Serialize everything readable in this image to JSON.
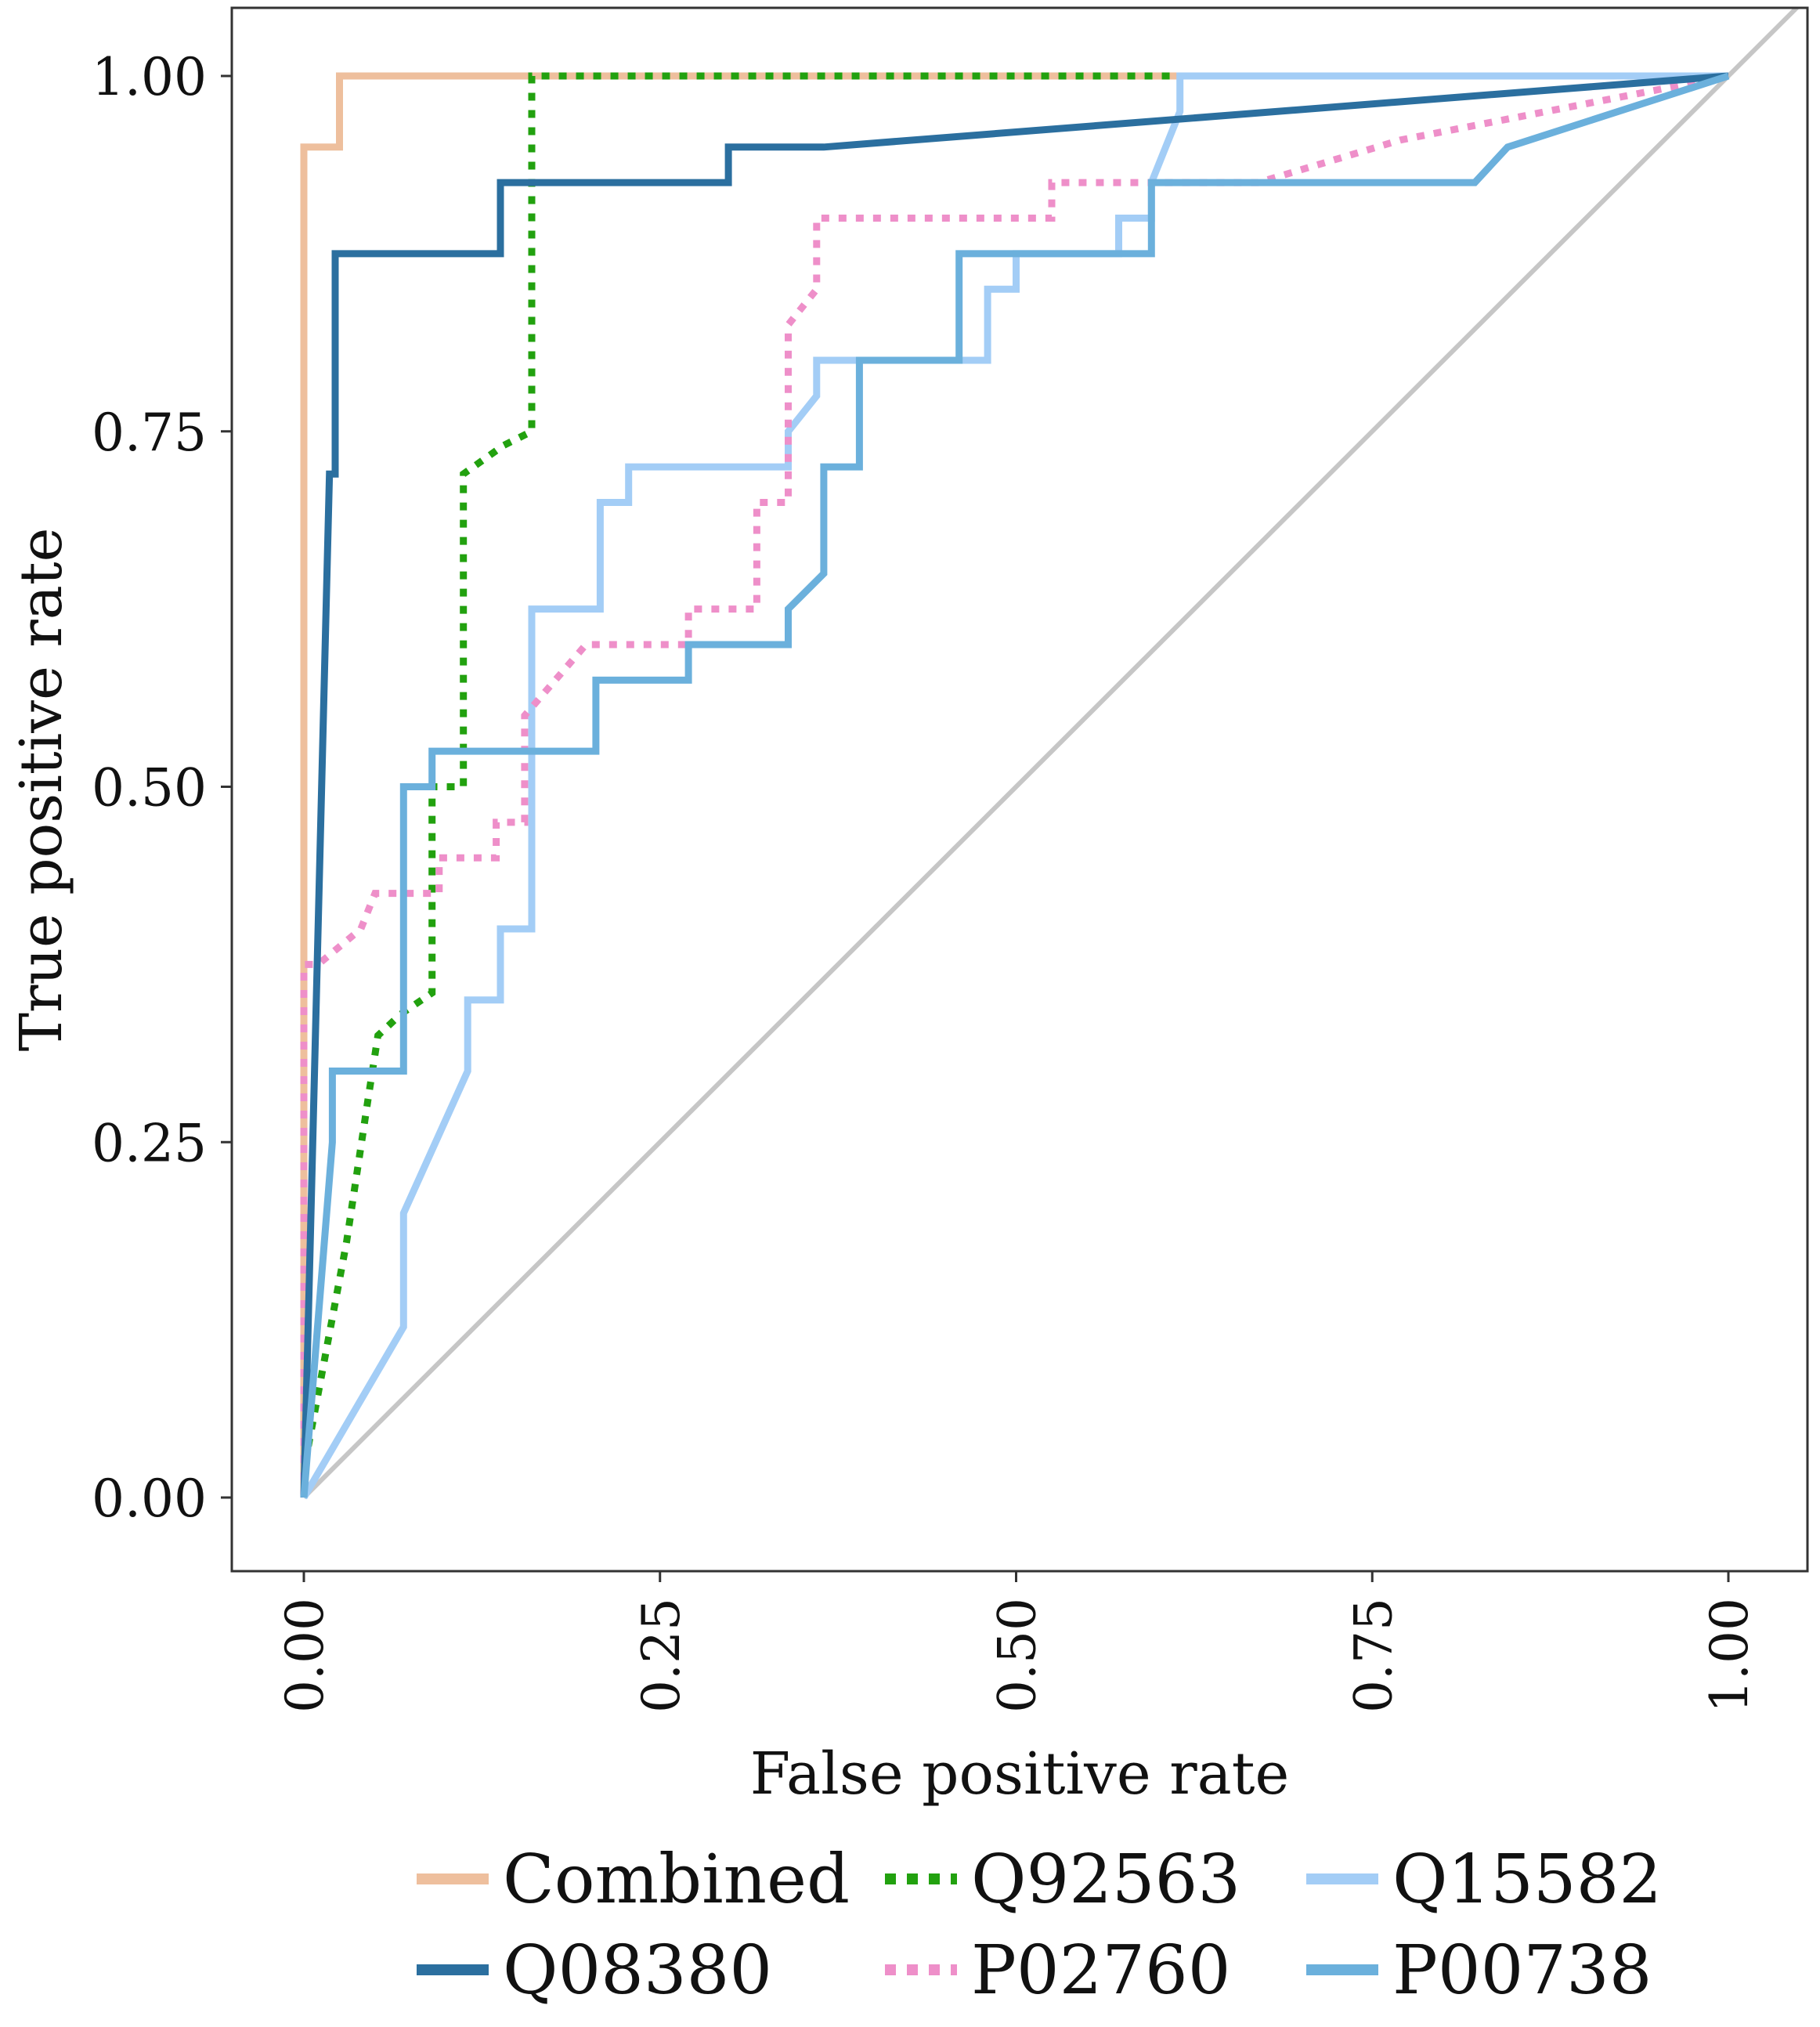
{
  "chart_data": {
    "type": "line",
    "title": "",
    "xlabel": "False positive rate",
    "ylabel": "True positive rate",
    "xlim": [
      -0.05,
      1.05
    ],
    "ylim": [
      -0.05,
      1.05
    ],
    "xticks": [
      0.0,
      0.25,
      0.5,
      0.75,
      1.0
    ],
    "yticks": [
      0.0,
      0.25,
      0.5,
      0.75,
      1.0
    ],
    "xtick_labels": [
      "0.00",
      "0.25",
      "0.50",
      "0.75",
      "1.00"
    ],
    "ytick_labels": [
      "0.00",
      "0.25",
      "0.50",
      "0.75",
      "1.00"
    ],
    "grid": false,
    "legend_position": "bottom",
    "reference_line": {
      "x": [
        0,
        1.05
      ],
      "y": [
        0,
        1.05
      ],
      "color": "#c6c6c6"
    },
    "series": [
      {
        "name": "Combined",
        "color": "#eebf9d",
        "dash": "solid",
        "x": [
          0,
          0,
          0.004,
          0.025,
          0.025,
          1.0
        ],
        "y": [
          0,
          0.95,
          0.95,
          0.95,
          1.0,
          1.0
        ]
      },
      {
        "name": "Q92563",
        "color": "#22a10f",
        "dash": "dotted",
        "x": [
          0,
          0.002,
          0.03,
          0.045,
          0.052,
          0.068,
          0.09,
          0.09,
          0.09,
          0.112,
          0.112,
          0.112,
          0.14,
          0.16,
          0.16,
          0.16,
          1.0
        ],
        "y": [
          0,
          0.03,
          0.18,
          0.28,
          0.325,
          0.34,
          0.355,
          0.475,
          0.5,
          0.5,
          0.6,
          0.72,
          0.74,
          0.75,
          0.76,
          1.0,
          1.0
        ]
      },
      {
        "name": "Q15582",
        "color": "#a3cdf6",
        "dash": "solid",
        "x": [
          0,
          0.07,
          0.07,
          0.115,
          0.115,
          0.138,
          0.138,
          0.16,
          0.16,
          0.208,
          0.208,
          0.228,
          0.228,
          0.34,
          0.34,
          0.36,
          0.36,
          0.48,
          0.48,
          0.5,
          0.5,
          0.572,
          0.572,
          0.595,
          0.595,
          0.615,
          0.615,
          1.0
        ],
        "y": [
          0,
          0.12,
          0.2,
          0.3,
          0.35,
          0.35,
          0.4,
          0.4,
          0.625,
          0.625,
          0.7,
          0.7,
          0.725,
          0.725,
          0.75,
          0.775,
          0.8,
          0.8,
          0.85,
          0.85,
          0.875,
          0.875,
          0.9,
          0.9,
          0.925,
          0.975,
          1.0,
          1.0
        ]
      },
      {
        "name": "P02760",
        "color": "#ee8fc9",
        "dash": "dotted",
        "x": [
          0,
          0,
          0.01,
          0.04,
          0.04,
          0.05,
          0.05,
          0.095,
          0.095,
          0.135,
          0.135,
          0.155,
          0.155,
          0.198,
          0.27,
          0.27,
          0.318,
          0.318,
          0.34,
          0.34,
          0.36,
          0.36,
          0.525,
          0.525,
          0.67,
          0.72,
          0.77,
          1.0
        ],
        "y": [
          0,
          0.375,
          0.375,
          0.4,
          0.4,
          0.425,
          0.425,
          0.425,
          0.45,
          0.45,
          0.475,
          0.475,
          0.55,
          0.6,
          0.6,
          0.625,
          0.625,
          0.7,
          0.7,
          0.825,
          0.85,
          0.9,
          0.9,
          0.925,
          0.925,
          0.94,
          0.955,
          1.0
        ]
      },
      {
        "name": "Q08380",
        "color": "#2b6f9f",
        "dash": "solid",
        "x": [
          0,
          0.018,
          0.022,
          0.022,
          0.138,
          0.138,
          0.298,
          0.298,
          0.365,
          1.0
        ],
        "y": [
          0,
          0.72,
          0.72,
          0.875,
          0.875,
          0.925,
          0.925,
          0.95,
          0.95,
          1.0
        ]
      },
      {
        "name": "P00738",
        "color": "#6bb0dc",
        "dash": "solid",
        "x": [
          0,
          0.02,
          0.02,
          0.07,
          0.07,
          0.09,
          0.09,
          0.205,
          0.205,
          0.27,
          0.27,
          0.34,
          0.34,
          0.365,
          0.365,
          0.39,
          0.39,
          0.46,
          0.46,
          0.595,
          0.595,
          0.822,
          0.845,
          1.0
        ],
        "y": [
          0,
          0.25,
          0.3,
          0.3,
          0.5,
          0.5,
          0.525,
          0.525,
          0.575,
          0.575,
          0.6,
          0.6,
          0.625,
          0.65,
          0.725,
          0.725,
          0.8,
          0.8,
          0.875,
          0.875,
          0.925,
          0.925,
          0.95,
          1.0
        ]
      }
    ],
    "legend_order": [
      "Combined",
      "Q92563",
      "Q15582",
      "Q08380",
      "P02760",
      "P00738"
    ]
  }
}
